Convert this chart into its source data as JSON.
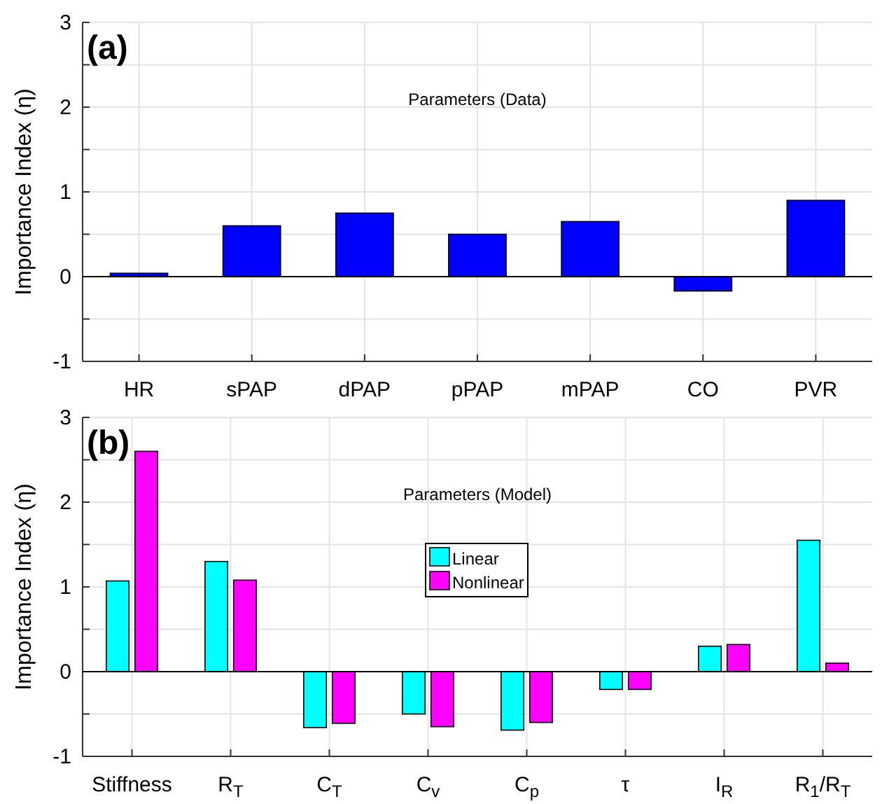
{
  "chart_data": [
    {
      "type": "bar",
      "ylabel": "Importance Index (η)",
      "annotations": [
        "(a)",
        "Parameters (Data)"
      ],
      "categories": [
        "HR",
        "sPAP",
        "dPAP",
        "pPAP",
        "mPAP",
        "CO",
        "PVR"
      ],
      "series": [
        {
          "color": "#0000ff",
          "values": [
            0.04,
            0.6,
            0.75,
            0.5,
            0.65,
            -0.17,
            0.9
          ]
        }
      ],
      "ylim": [
        -1,
        3
      ],
      "yticks": [
        -1,
        {
          "value": -0.5,
          "label": null
        },
        0,
        {
          "value": 0.5,
          "label": null
        },
        1,
        {
          "value": 1.5,
          "label": null
        },
        2,
        {
          "value": 2.5,
          "label": null
        },
        3
      ],
      "grid": true,
      "legend": false
    },
    {
      "type": "bar",
      "ylabel": "Importance Index (η)",
      "annotations": [
        "(b)",
        "Parameters (Model)"
      ],
      "categories": [
        "Stiffness",
        "R$_{T}$",
        "C$_{T}$",
        "C$_{v}$",
        "C$_{p}$",
        "τ",
        "I$_{R}$",
        "R$_{1}$/R$_{T}$"
      ],
      "series": [
        {
          "name": "Linear",
          "color": "#00ffff",
          "values": [
            1.07,
            1.3,
            -0.66,
            -0.5,
            -0.69,
            -0.21,
            0.3,
            1.55
          ]
        },
        {
          "name": "Nonlinear",
          "color": "#ff00ff",
          "values": [
            2.6,
            1.08,
            -0.61,
            -0.65,
            -0.6,
            -0.21,
            0.32,
            0.1
          ]
        }
      ],
      "ylim": [
        -1,
        3
      ],
      "yticks": [
        -1,
        {
          "value": -0.5,
          "label": null
        },
        0,
        {
          "value": 0.5,
          "label": null
        },
        1,
        {
          "value": 1.5,
          "label": null
        },
        2,
        {
          "value": 2.5,
          "label": null
        },
        3
      ],
      "grid": true,
      "legend": "top"
    }
  ]
}
